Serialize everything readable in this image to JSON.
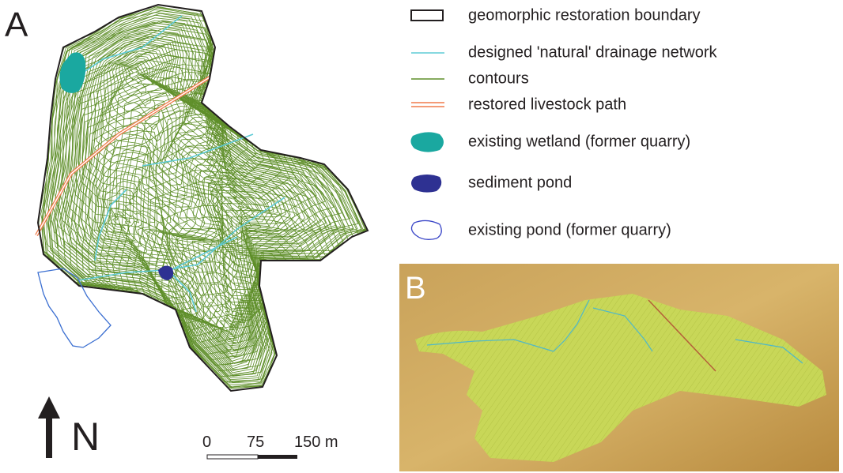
{
  "panel_a": {
    "label": "A"
  },
  "panel_b": {
    "label": "B"
  },
  "legend": [
    "geomorphic restoration boundary",
    "designed 'natural' drainage network",
    "contours",
    "restored livestock path",
    "existing wetland (former quarry)",
    "sediment pond",
    "existing pond (former quarry)"
  ],
  "north_arrow": {
    "label": "N"
  },
  "scale_bar": {
    "labels": [
      "0",
      "75",
      "150 m"
    ]
  }
}
